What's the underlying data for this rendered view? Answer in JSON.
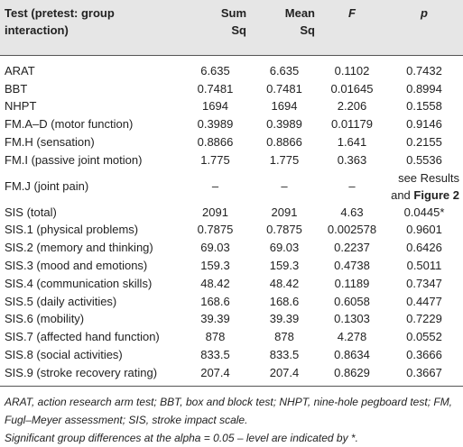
{
  "table": {
    "header": [
      "Test (pretest: group interaction)",
      "Sum\nSq",
      "Mean\nSq",
      "F",
      "p"
    ],
    "rows": [
      [
        "ARAT",
        "6.635",
        "6.635",
        "0.1102",
        "0.7432"
      ],
      [
        "BBT",
        "0.7481",
        "0.7481",
        "0.01645",
        "0.8994"
      ],
      [
        "NHPT",
        "1694",
        "1694",
        "2.206",
        "0.1558"
      ],
      [
        "FM.A–D (motor function)",
        "0.3989",
        "0.3989",
        "0.01179",
        "0.9146"
      ],
      [
        "FM.H (sensation)",
        "0.8866",
        "0.8866",
        "1.641",
        "0.2155"
      ],
      [
        "FM.I (passive joint motion)",
        "1.775",
        "1.775",
        "0.363",
        "0.5536"
      ],
      [
        "FM.J (joint pain)",
        "–",
        "–",
        "–",
        {
          "text": "see Results and",
          "ref": "Figure 2"
        }
      ],
      [
        "SIS (total)",
        "2091",
        "2091",
        "4.63",
        "0.0445*"
      ],
      [
        "SIS.1 (physical problems)",
        "0.7875",
        "0.7875",
        "0.002578",
        "0.9601"
      ],
      [
        "SIS.2 (memory and thinking)",
        "69.03",
        "69.03",
        "0.2237",
        "0.6426"
      ],
      [
        "SIS.3 (mood and emotions)",
        "159.3",
        "159.3",
        "0.4738",
        "0.5011"
      ],
      [
        "SIS.4 (communication skills)",
        "48.42",
        "48.42",
        "0.1189",
        "0.7347"
      ],
      [
        "SIS.5 (daily activities)",
        "168.6",
        "168.6",
        "0.6058",
        "0.4477"
      ],
      [
        "SIS.6 (mobility)",
        "39.39",
        "39.39",
        "0.1303",
        "0.7229"
      ],
      [
        "SIS.7 (affected hand function)",
        "878",
        "878",
        "4.278",
        "0.0552"
      ],
      [
        "SIS.8 (social activities)",
        "833.5",
        "833.5",
        "0.8634",
        "0.3666"
      ],
      [
        "SIS.9 (stroke recovery rating)",
        "207.4",
        "207.4",
        "0.8629",
        "0.3667"
      ]
    ]
  },
  "footnotes": [
    "ARAT, action research arm test; BBT, box and block test; NHPT, nine-hole pegboard test; FM, Fugl–Meyer assessment; SIS, stroke impact scale.",
    "Significant group differences at the alpha = 0.05 – level are indicated by *."
  ]
}
